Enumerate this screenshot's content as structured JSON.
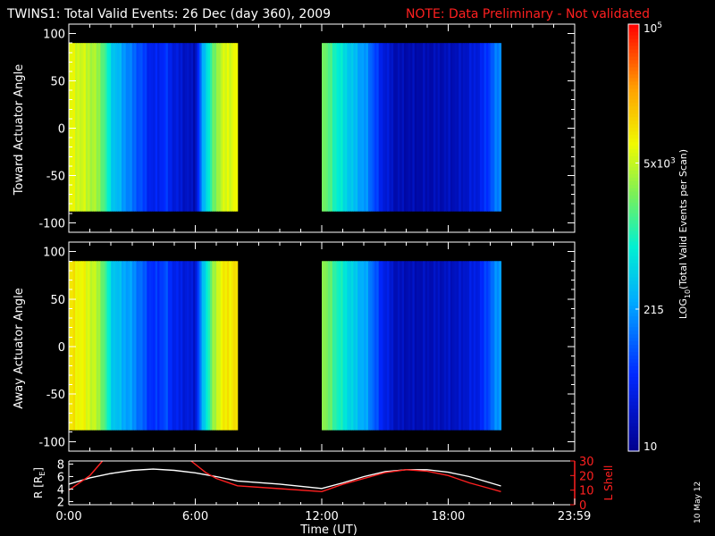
{
  "header": {
    "title": "TWINS1: Total Valid Events: 26 Dec (day 360), 2009",
    "note": "NOTE: Data Preliminary - Not validated",
    "note_color": "#ff2020"
  },
  "footer": {
    "xlabel": "Time (UT)",
    "date_stamp": "10 May 12"
  },
  "chart_data": [
    {
      "type": "heatmap",
      "panel": "toward",
      "ylabel": "Toward Actuator Angle",
      "ylim": [
        -110,
        110
      ],
      "yticks": [
        100,
        50,
        0,
        -50,
        -100
      ],
      "xlim": [
        0,
        24
      ],
      "data_ranges_hours": [
        [
          0.0,
          8.0
        ],
        [
          12.0,
          20.5
        ]
      ],
      "angle_range": [
        -88,
        90
      ],
      "colorbar_value_by_hour_description": "log counts per scan",
      "log_profile": [
        {
          "t": 0.0,
          "v": 3.85
        },
        {
          "t": 0.6,
          "v": 3.75
        },
        {
          "t": 1.2,
          "v": 3.6
        },
        {
          "t": 1.6,
          "v": 3.35
        },
        {
          "t": 2.0,
          "v": 2.7
        },
        {
          "t": 2.4,
          "v": 2.45
        },
        {
          "t": 3.0,
          "v": 2.1
        },
        {
          "t": 3.5,
          "v": 1.85
        },
        {
          "t": 4.0,
          "v": 1.55
        },
        {
          "t": 4.6,
          "v": 1.75
        },
        {
          "t": 5.0,
          "v": 1.5
        },
        {
          "t": 5.6,
          "v": 1.35
        },
        {
          "t": 6.0,
          "v": 1.25
        },
        {
          "t": 6.4,
          "v": 2.5
        },
        {
          "t": 6.8,
          "v": 3.2
        },
        {
          "t": 7.2,
          "v": 3.7
        },
        {
          "t": 8.0,
          "v": 3.9
        },
        {
          "t": 12.0,
          "v": 3.5
        },
        {
          "t": 12.5,
          "v": 3.1
        },
        {
          "t": 13.0,
          "v": 2.8
        },
        {
          "t": 13.6,
          "v": 2.5
        },
        {
          "t": 14.2,
          "v": 2.2
        },
        {
          "t": 14.8,
          "v": 1.6
        },
        {
          "t": 15.5,
          "v": 1.25
        },
        {
          "t": 16.5,
          "v": 1.2
        },
        {
          "t": 17.5,
          "v": 1.25
        },
        {
          "t": 18.5,
          "v": 1.3
        },
        {
          "t": 19.5,
          "v": 1.55
        },
        {
          "t": 20.0,
          "v": 1.9
        },
        {
          "t": 20.5,
          "v": 2.3
        }
      ]
    },
    {
      "type": "heatmap",
      "panel": "away",
      "ylabel": "Away Actuator Angle",
      "ylim": [
        -110,
        110
      ],
      "yticks": [
        100,
        50,
        0,
        -50,
        -100
      ],
      "xlim": [
        0,
        24
      ],
      "data_ranges_hours": [
        [
          0.0,
          8.0
        ],
        [
          12.0,
          20.5
        ]
      ],
      "angle_range": [
        -88,
        90
      ],
      "log_profile": [
        {
          "t": 0.0,
          "v": 4.0
        },
        {
          "t": 0.6,
          "v": 3.9
        },
        {
          "t": 1.2,
          "v": 3.7
        },
        {
          "t": 1.6,
          "v": 3.4
        },
        {
          "t": 2.0,
          "v": 2.7
        },
        {
          "t": 2.4,
          "v": 2.5
        },
        {
          "t": 3.0,
          "v": 2.3
        },
        {
          "t": 3.5,
          "v": 2.0
        },
        {
          "t": 4.0,
          "v": 1.7
        },
        {
          "t": 4.6,
          "v": 1.9
        },
        {
          "t": 5.0,
          "v": 1.6
        },
        {
          "t": 5.6,
          "v": 1.5
        },
        {
          "t": 6.0,
          "v": 1.4
        },
        {
          "t": 6.4,
          "v": 2.6
        },
        {
          "t": 6.8,
          "v": 3.4
        },
        {
          "t": 7.2,
          "v": 3.9
        },
        {
          "t": 8.0,
          "v": 4.05
        },
        {
          "t": 12.0,
          "v": 3.6
        },
        {
          "t": 12.5,
          "v": 3.2
        },
        {
          "t": 13.0,
          "v": 2.9
        },
        {
          "t": 13.6,
          "v": 2.6
        },
        {
          "t": 14.2,
          "v": 2.3
        },
        {
          "t": 14.8,
          "v": 1.7
        },
        {
          "t": 15.5,
          "v": 1.3
        },
        {
          "t": 16.5,
          "v": 1.25
        },
        {
          "t": 17.5,
          "v": 1.3
        },
        {
          "t": 18.5,
          "v": 1.35
        },
        {
          "t": 19.5,
          "v": 1.6
        },
        {
          "t": 20.0,
          "v": 2.0
        },
        {
          "t": 20.5,
          "v": 2.4
        }
      ]
    },
    {
      "type": "line",
      "panel": "orbit",
      "ylabel_left": "R [R",
      "ylabel_left_sub": "E",
      "ylabel_left_end": "]",
      "ylabel_right": "L Shell",
      "left_ylim": [
        1.5,
        8.5
      ],
      "left_yticks": [
        8,
        6,
        4,
        2
      ],
      "right_ylim": [
        0,
        30
      ],
      "right_yticks": [
        30,
        20,
        10,
        0
      ],
      "xlim": [
        0,
        24
      ],
      "xticks": [
        {
          "t": 0,
          "label": "0:00"
        },
        {
          "t": 6,
          "label": "6:00"
        },
        {
          "t": 12,
          "label": "12:00"
        },
        {
          "t": 18,
          "label": "18:00"
        },
        {
          "t": 23.983,
          "label": "23:59"
        }
      ],
      "series": [
        {
          "color": "#ffffff",
          "points": [
            [
              0,
              4.8
            ],
            [
              1,
              5.8
            ],
            [
              2,
              6.5
            ],
            [
              3,
              7.0
            ],
            [
              4,
              7.2
            ],
            [
              5,
              7.0
            ],
            [
              6,
              6.6
            ],
            [
              7,
              6.0
            ],
            [
              8,
              5.3
            ],
            [
              10,
              4.8
            ],
            [
              12,
              4.1
            ],
            [
              13,
              5.0
            ],
            [
              14,
              6.0
            ],
            [
              15,
              6.8
            ],
            [
              16,
              7.1
            ],
            [
              17,
              7.1
            ],
            [
              18,
              6.7
            ],
            [
              19,
              6.0
            ],
            [
              20,
              5.0
            ],
            [
              20.5,
              4.5
            ]
          ]
        },
        {
          "color": "#ff2020",
          "points": [
            [
              0,
              10
            ],
            [
              1,
              20
            ],
            [
              1.6,
              30
            ],
            null,
            [
              5.8,
              30
            ],
            [
              6.5,
              22
            ],
            [
              7,
              18
            ],
            [
              8,
              13
            ],
            [
              10,
              11
            ],
            [
              12,
              9
            ],
            [
              13,
              14
            ],
            [
              14,
              18
            ],
            [
              15,
              22
            ],
            [
              16,
              24
            ],
            [
              17,
              23
            ],
            [
              18,
              20
            ],
            [
              19,
              15
            ],
            [
              20,
              11
            ],
            [
              20.5,
              9
            ]
          ]
        }
      ]
    }
  ],
  "colorbar": {
    "label_main": "LOG",
    "label_sub": "10",
    "label_rest": "(Total Valid  Events per Scan)",
    "ticks": [
      {
        "v": 5.0,
        "text": "10",
        "sup": "5"
      },
      {
        "v": 3.699,
        "text": "5x10",
        "sup": "3"
      },
      {
        "v": 2.332,
        "text": "215",
        "sup": ""
      },
      {
        "v": 1.0,
        "text": "10",
        "sup": ""
      }
    ],
    "range": [
      1.0,
      5.0
    ]
  }
}
